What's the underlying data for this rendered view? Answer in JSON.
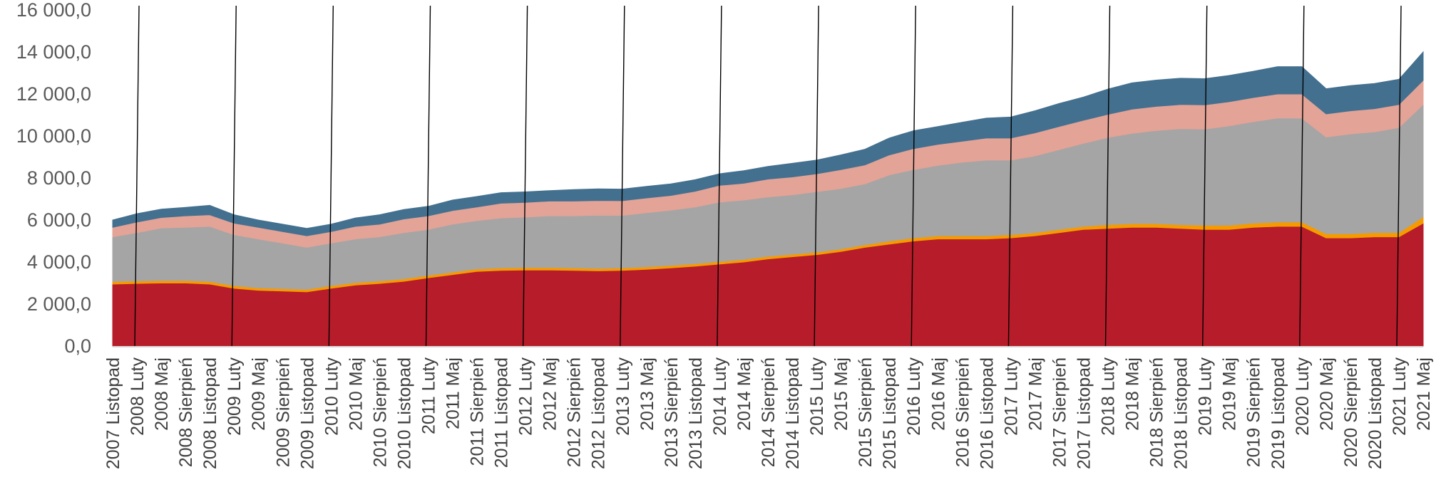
{
  "chart_data": {
    "type": "area",
    "stacked": true,
    "title": "",
    "xlabel": "",
    "ylabel": "",
    "ylim": [
      0,
      16000
    ],
    "y_ticks": [
      "0,0",
      "2 000,0",
      "4 000,0",
      "6 000,0",
      "8 000,0",
      "10 000,0",
      "12 000,0",
      "14 000,0",
      "16 000,0"
    ],
    "legend": "none",
    "grid": false,
    "x_labels": [
      "2007 Listopad",
      "2008 Luty",
      "2008 Maj",
      "2008 Sierpień",
      "2008 Listopad",
      "2009 Luty",
      "2009 Maj",
      "2009 Sierpień",
      "2009 Listopad",
      "2010 Luty",
      "2010 Maj",
      "2010 Sierpień",
      "2010 Listopad",
      "2011 Luty",
      "2011 Maj",
      "2011 Sierpień",
      "2011 Listopad",
      "2012 Luty",
      "2012 Maj",
      "2012 Sierpień",
      "2012 Listopad",
      "2013 Luty",
      "2013 Maj",
      "2013 Sierpień",
      "2013 Listopad",
      "2014 Luty",
      "2014 Maj",
      "2014 Sierpień",
      "2014 Listopad",
      "2015 Luty",
      "2015 Maj",
      "2015 Sierpień",
      "2015 Listopad",
      "2016 Luty",
      "2016 Maj",
      "2016 Sierpień",
      "2016 Listopad",
      "2017 Luty",
      "2017 Maj",
      "2017 Sierpień",
      "2017 Listopad",
      "2018 Luty",
      "2018 Maj",
      "2018 Sierpień",
      "2018 Listopad",
      "2019 Luty",
      "2019 Maj",
      "2019 Sierpień",
      "2019 Listopad",
      "2020 Luty",
      "2020 Maj",
      "2020 Sierpień",
      "2020 Listopad",
      "2021 Luty",
      "2021 Maj"
    ],
    "series": [
      {
        "color": "#B71C2A",
        "values": [
          2950,
          2980,
          3000,
          3000,
          2950,
          2750,
          2650,
          2620,
          2580,
          2750,
          2900,
          2980,
          3080,
          3250,
          3400,
          3550,
          3600,
          3620,
          3620,
          3600,
          3580,
          3600,
          3650,
          3720,
          3800,
          3900,
          4000,
          4150,
          4250,
          4350,
          4500,
          4700,
          4850,
          5000,
          5100,
          5100,
          5100,
          5150,
          5250,
          5400,
          5550,
          5600,
          5650,
          5650,
          5600,
          5550,
          5550,
          5650,
          5700,
          5700,
          5150,
          5150,
          5200,
          5200,
          5850
        ]
      },
      {
        "color": "#F59B00",
        "values": [
          120,
          120,
          120,
          120,
          120,
          120,
          120,
          120,
          120,
          120,
          120,
          120,
          120,
          120,
          120,
          120,
          120,
          120,
          120,
          120,
          120,
          120,
          120,
          120,
          120,
          120,
          120,
          120,
          120,
          120,
          120,
          120,
          150,
          150,
          150,
          150,
          150,
          150,
          150,
          150,
          150,
          180,
          180,
          180,
          180,
          200,
          200,
          200,
          200,
          200,
          200,
          200,
          200,
          200,
          300
        ]
      },
      {
        "color": "#A5A5A5",
        "values": [
          2130,
          2300,
          2500,
          2530,
          2630,
          2430,
          2330,
          2160,
          2000,
          2030,
          2080,
          2100,
          2200,
          2180,
          2280,
          2300,
          2380,
          2400,
          2460,
          2480,
          2530,
          2500,
          2580,
          2630,
          2700,
          2830,
          2830,
          2830,
          2830,
          2880,
          2880,
          2900,
          3150,
          3250,
          3350,
          3500,
          3600,
          3550,
          3650,
          3800,
          3950,
          4150,
          4300,
          4430,
          4570,
          4580,
          4730,
          4830,
          4950,
          4950,
          4600,
          4750,
          4800,
          5000,
          5350
        ]
      },
      {
        "color": "#E3A397",
        "values": [
          450,
          500,
          500,
          550,
          550,
          550,
          550,
          550,
          550,
          550,
          600,
          600,
          650,
          650,
          650,
          650,
          700,
          700,
          700,
          700,
          700,
          700,
          700,
          700,
          750,
          800,
          800,
          850,
          850,
          850,
          900,
          900,
          950,
          1000,
          1000,
          1000,
          1050,
          1050,
          1100,
          1100,
          1100,
          1100,
          1150,
          1150,
          1150,
          1150,
          1150,
          1150,
          1150,
          1150,
          1100,
          1100,
          1100,
          1100,
          1150
        ]
      },
      {
        "color": "#44708F",
        "values": [
          350,
          400,
          400,
          400,
          450,
          400,
          350,
          350,
          350,
          350,
          400,
          450,
          450,
          450,
          500,
          500,
          500,
          500,
          500,
          550,
          550,
          550,
          550,
          550,
          550,
          550,
          600,
          600,
          650,
          650,
          700,
          750,
          800,
          850,
          850,
          900,
          950,
          1000,
          1050,
          1100,
          1100,
          1200,
          1250,
          1250,
          1250,
          1250,
          1250,
          1250,
          1300,
          1300,
          1200,
          1200,
          1200,
          1200,
          1350
        ]
      }
    ]
  }
}
